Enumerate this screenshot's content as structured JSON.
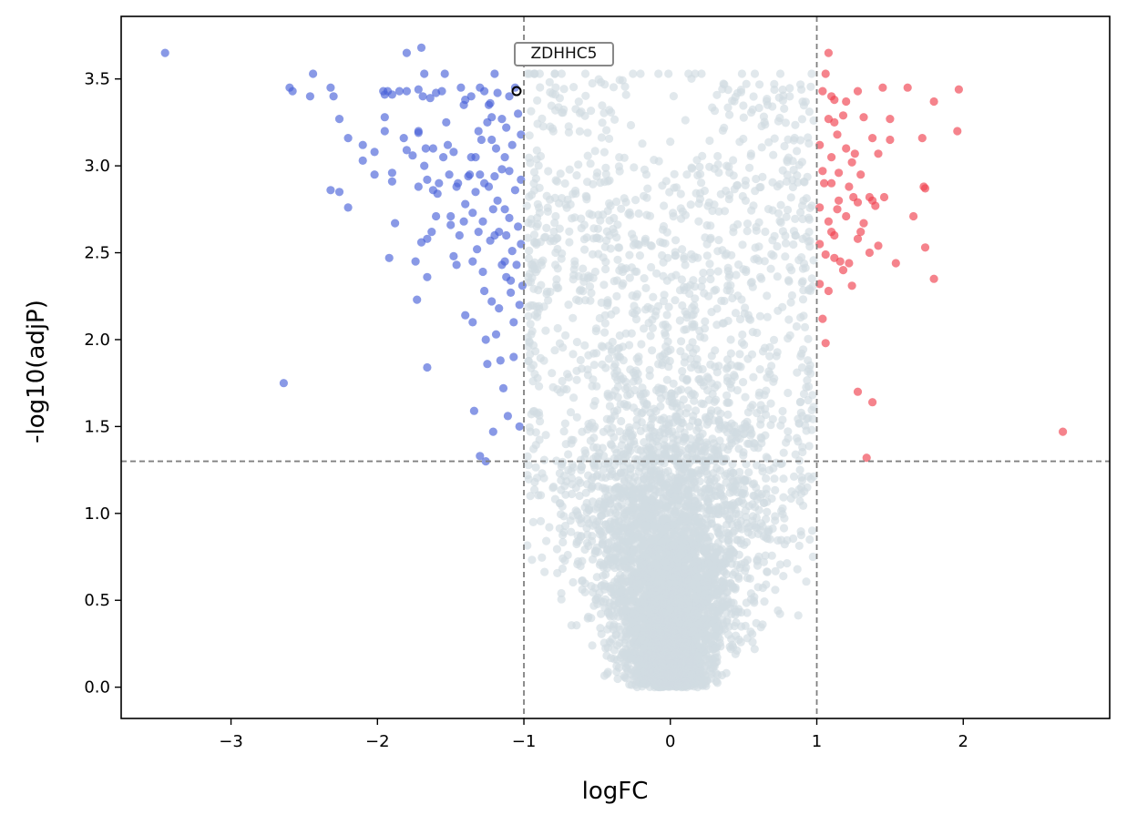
{
  "chart_data": {
    "type": "scatter",
    "title": "",
    "xlabel": "logFC",
    "ylabel": "-log10(adjP)",
    "xlim": [
      -3.75,
      3.0
    ],
    "ylim": [
      -0.18,
      3.86
    ],
    "xticks": [
      -3,
      -2,
      -1,
      0,
      1,
      2
    ],
    "xtick_labels": [
      "−3",
      "−2",
      "−1",
      "0",
      "1",
      "2"
    ],
    "yticks": [
      0.0,
      0.5,
      1.0,
      1.5,
      2.0,
      2.5,
      3.0,
      3.5
    ],
    "ytick_labels": [
      "0.0",
      "0.5",
      "1.0",
      "1.5",
      "2.0",
      "2.5",
      "3.0",
      "3.5"
    ],
    "thresholds": {
      "logfc": [
        -1,
        1
      ],
      "neglog10_adjp": 1.3
    },
    "colors": {
      "down": "#4a63d8",
      "up": "#f0414f",
      "ns": "#d1dbe2",
      "threshold": "#808080",
      "highlight": "#000000"
    },
    "annotation": {
      "label": "ZDHHC5",
      "x": -1.05,
      "y": 3.43
    },
    "series": [
      {
        "name": "down",
        "points": [
          [
            -3.45,
            3.65
          ],
          [
            -2.64,
            1.75
          ],
          [
            -2.6,
            3.45
          ],
          [
            -2.58,
            3.43
          ],
          [
            -2.44,
            3.53
          ],
          [
            -2.46,
            3.4
          ],
          [
            -2.32,
            3.45
          ],
          [
            -2.3,
            3.4
          ],
          [
            -2.26,
            3.27
          ],
          [
            -2.2,
            3.16
          ],
          [
            -2.32,
            2.86
          ],
          [
            -2.26,
            2.85
          ],
          [
            -2.2,
            2.76
          ],
          [
            -2.1,
            3.12
          ],
          [
            -2.1,
            3.03
          ],
          [
            -2.02,
            3.08
          ],
          [
            -2.02,
            2.95
          ],
          [
            -1.96,
            3.43
          ],
          [
            -1.95,
            3.41
          ],
          [
            -1.93,
            3.43
          ],
          [
            -1.9,
            3.41
          ],
          [
            -1.95,
            3.28
          ],
          [
            -1.95,
            3.2
          ],
          [
            -1.9,
            2.96
          ],
          [
            -1.9,
            2.91
          ],
          [
            -1.92,
            2.47
          ],
          [
            -1.88,
            2.67
          ],
          [
            -1.85,
            3.43
          ],
          [
            -1.82,
            3.16
          ],
          [
            -1.8,
            3.43
          ],
          [
            -1.8,
            3.09
          ],
          [
            -1.8,
            3.65
          ],
          [
            -1.76,
            3.06
          ],
          [
            -1.74,
            2.45
          ],
          [
            -1.73,
            2.23
          ],
          [
            -1.72,
            3.44
          ],
          [
            -1.72,
            3.2
          ],
          [
            -1.72,
            3.19
          ],
          [
            -1.7,
            3.68
          ],
          [
            -1.7,
            2.56
          ],
          [
            -1.72,
            2.88
          ],
          [
            -1.69,
            3.4
          ],
          [
            -1.68,
            3.53
          ],
          [
            -1.68,
            3.0
          ],
          [
            -1.67,
            3.1
          ],
          [
            -1.66,
            2.92
          ],
          [
            -1.66,
            2.58
          ],
          [
            -1.66,
            2.36
          ],
          [
            -1.66,
            1.84
          ],
          [
            -1.64,
            3.39
          ],
          [
            -1.62,
            3.1
          ],
          [
            -1.62,
            2.86
          ],
          [
            -1.6,
            3.42
          ],
          [
            -1.6,
            2.71
          ],
          [
            -1.58,
            2.9
          ],
          [
            -1.56,
            3.43
          ],
          [
            -1.54,
            3.53
          ],
          [
            -1.53,
            3.25
          ],
          [
            -1.52,
            3.12
          ],
          [
            -1.5,
            2.71
          ],
          [
            -1.5,
            2.66
          ],
          [
            -1.48,
            2.48
          ],
          [
            -1.48,
            3.08
          ],
          [
            -1.46,
            2.88
          ],
          [
            -1.46,
            2.43
          ],
          [
            -1.44,
            2.6
          ],
          [
            -1.43,
            3.45
          ],
          [
            -1.41,
            3.35
          ],
          [
            -1.4,
            3.38
          ],
          [
            -1.4,
            2.78
          ],
          [
            -1.4,
            2.14
          ],
          [
            -1.38,
            2.94
          ],
          [
            -1.36,
            3.4
          ],
          [
            -1.36,
            3.05
          ],
          [
            -1.35,
            2.73
          ],
          [
            -1.35,
            2.1
          ],
          [
            -1.34,
            1.59
          ],
          [
            -1.33,
            2.85
          ],
          [
            -1.32,
            2.52
          ],
          [
            -1.31,
            3.2
          ],
          [
            -1.3,
            3.45
          ],
          [
            -1.3,
            2.95
          ],
          [
            -1.28,
            2.68
          ],
          [
            -1.28,
            2.39
          ],
          [
            -1.27,
            3.43
          ],
          [
            -1.27,
            2.28
          ],
          [
            -1.26,
            2.0
          ],
          [
            -1.25,
            1.86
          ],
          [
            -1.24,
            3.35
          ],
          [
            -1.24,
            2.88
          ],
          [
            -1.23,
            2.57
          ],
          [
            -1.22,
            3.28
          ],
          [
            -1.22,
            3.15
          ],
          [
            -1.22,
            2.22
          ],
          [
            -1.21,
            1.47
          ],
          [
            -1.2,
            3.53
          ],
          [
            -1.2,
            2.94
          ],
          [
            -1.2,
            2.6
          ],
          [
            -1.19,
            2.03
          ],
          [
            -1.18,
            3.42
          ],
          [
            -1.18,
            2.8
          ],
          [
            -1.17,
            2.18
          ],
          [
            -1.16,
            1.88
          ],
          [
            -1.15,
            3.27
          ],
          [
            -1.15,
            2.43
          ],
          [
            -1.14,
            1.72
          ],
          [
            -1.13,
            3.05
          ],
          [
            -1.13,
            2.75
          ],
          [
            -1.12,
            3.22
          ],
          [
            -1.12,
            2.6
          ],
          [
            -1.12,
            2.36
          ],
          [
            -1.11,
            1.56
          ],
          [
            -1.1,
            3.4
          ],
          [
            -1.1,
            2.97
          ],
          [
            -1.1,
            2.7
          ],
          [
            -1.09,
            2.27
          ],
          [
            -1.08,
            3.12
          ],
          [
            -1.08,
            2.51
          ],
          [
            -1.07,
            2.1
          ],
          [
            -1.07,
            1.9
          ],
          [
            -1.06,
            3.45
          ],
          [
            -1.06,
            2.86
          ],
          [
            -1.05,
            2.43
          ],
          [
            -1.04,
            3.3
          ],
          [
            -1.04,
            2.65
          ],
          [
            -1.03,
            2.2
          ],
          [
            -1.03,
            1.5
          ],
          [
            -1.02,
            3.18
          ],
          [
            -1.02,
            2.92
          ],
          [
            -1.02,
            2.55
          ],
          [
            -1.01,
            2.31
          ],
          [
            -1.25,
            3.25
          ],
          [
            -1.29,
            3.15
          ],
          [
            -1.33,
            3.05
          ],
          [
            -1.37,
            2.95
          ],
          [
            -1.27,
            2.9
          ],
          [
            -1.21,
            2.75
          ],
          [
            -1.17,
            2.62
          ],
          [
            -1.13,
            2.45
          ],
          [
            -1.09,
            2.34
          ],
          [
            -1.15,
            2.98
          ],
          [
            -1.19,
            3.1
          ],
          [
            -1.23,
            3.36
          ],
          [
            -1.31,
            2.62
          ],
          [
            -1.35,
            2.45
          ],
          [
            -1.41,
            2.68
          ],
          [
            -1.45,
            2.9
          ],
          [
            -1.55,
            3.05
          ],
          [
            -1.51,
            2.95
          ],
          [
            -1.59,
            2.84
          ],
          [
            -1.63,
            2.62
          ],
          [
            -1.26,
            1.3
          ],
          [
            -1.3,
            1.33
          ]
        ]
      },
      {
        "name": "up",
        "points": [
          [
            1.08,
            3.65
          ],
          [
            1.06,
            3.53
          ],
          [
            1.04,
            3.43
          ],
          [
            1.1,
            3.4
          ],
          [
            1.12,
            3.38
          ],
          [
            1.2,
            3.37
          ],
          [
            1.28,
            3.43
          ],
          [
            1.45,
            3.45
          ],
          [
            1.62,
            3.45
          ],
          [
            1.8,
            3.37
          ],
          [
            1.97,
            3.44
          ],
          [
            1.96,
            3.2
          ],
          [
            1.08,
            3.27
          ],
          [
            1.12,
            3.25
          ],
          [
            1.18,
            3.29
          ],
          [
            1.32,
            3.28
          ],
          [
            1.5,
            3.27
          ],
          [
            1.02,
            3.12
          ],
          [
            1.1,
            3.05
          ],
          [
            1.14,
            3.18
          ],
          [
            1.2,
            3.1
          ],
          [
            1.26,
            3.07
          ],
          [
            1.38,
            3.16
          ],
          [
            1.42,
            3.07
          ],
          [
            1.5,
            3.15
          ],
          [
            1.72,
            3.16
          ],
          [
            1.04,
            2.97
          ],
          [
            1.1,
            2.9
          ],
          [
            1.15,
            2.96
          ],
          [
            1.22,
            2.88
          ],
          [
            1.3,
            2.95
          ],
          [
            1.36,
            2.82
          ],
          [
            1.46,
            2.82
          ],
          [
            1.74,
            2.87
          ],
          [
            1.73,
            2.88
          ],
          [
            1.02,
            2.76
          ],
          [
            1.08,
            2.68
          ],
          [
            1.14,
            2.75
          ],
          [
            1.2,
            2.71
          ],
          [
            1.28,
            2.79
          ],
          [
            1.32,
            2.67
          ],
          [
            1.38,
            2.8
          ],
          [
            1.66,
            2.71
          ],
          [
            1.02,
            2.55
          ],
          [
            1.06,
            2.49
          ],
          [
            1.12,
            2.6
          ],
          [
            1.16,
            2.45
          ],
          [
            1.22,
            2.44
          ],
          [
            1.28,
            2.58
          ],
          [
            1.36,
            2.5
          ],
          [
            1.42,
            2.54
          ],
          [
            1.54,
            2.44
          ],
          [
            1.74,
            2.53
          ],
          [
            1.8,
            2.35
          ],
          [
            1.02,
            2.32
          ],
          [
            1.08,
            2.28
          ],
          [
            1.12,
            2.47
          ],
          [
            1.18,
            2.4
          ],
          [
            1.24,
            2.31
          ],
          [
            1.04,
            2.12
          ],
          [
            1.06,
            1.98
          ],
          [
            1.28,
            1.7
          ],
          [
            1.38,
            1.64
          ],
          [
            2.68,
            1.47
          ],
          [
            1.34,
            1.32
          ],
          [
            1.05,
            2.9
          ],
          [
            1.1,
            2.62
          ],
          [
            1.15,
            2.8
          ],
          [
            1.25,
            2.82
          ],
          [
            1.3,
            2.62
          ],
          [
            1.24,
            3.02
          ],
          [
            1.4,
            2.77
          ]
        ]
      },
      {
        "name": "ns",
        "generated": true,
        "count": 5200,
        "seed": 20240601
      }
    ]
  }
}
